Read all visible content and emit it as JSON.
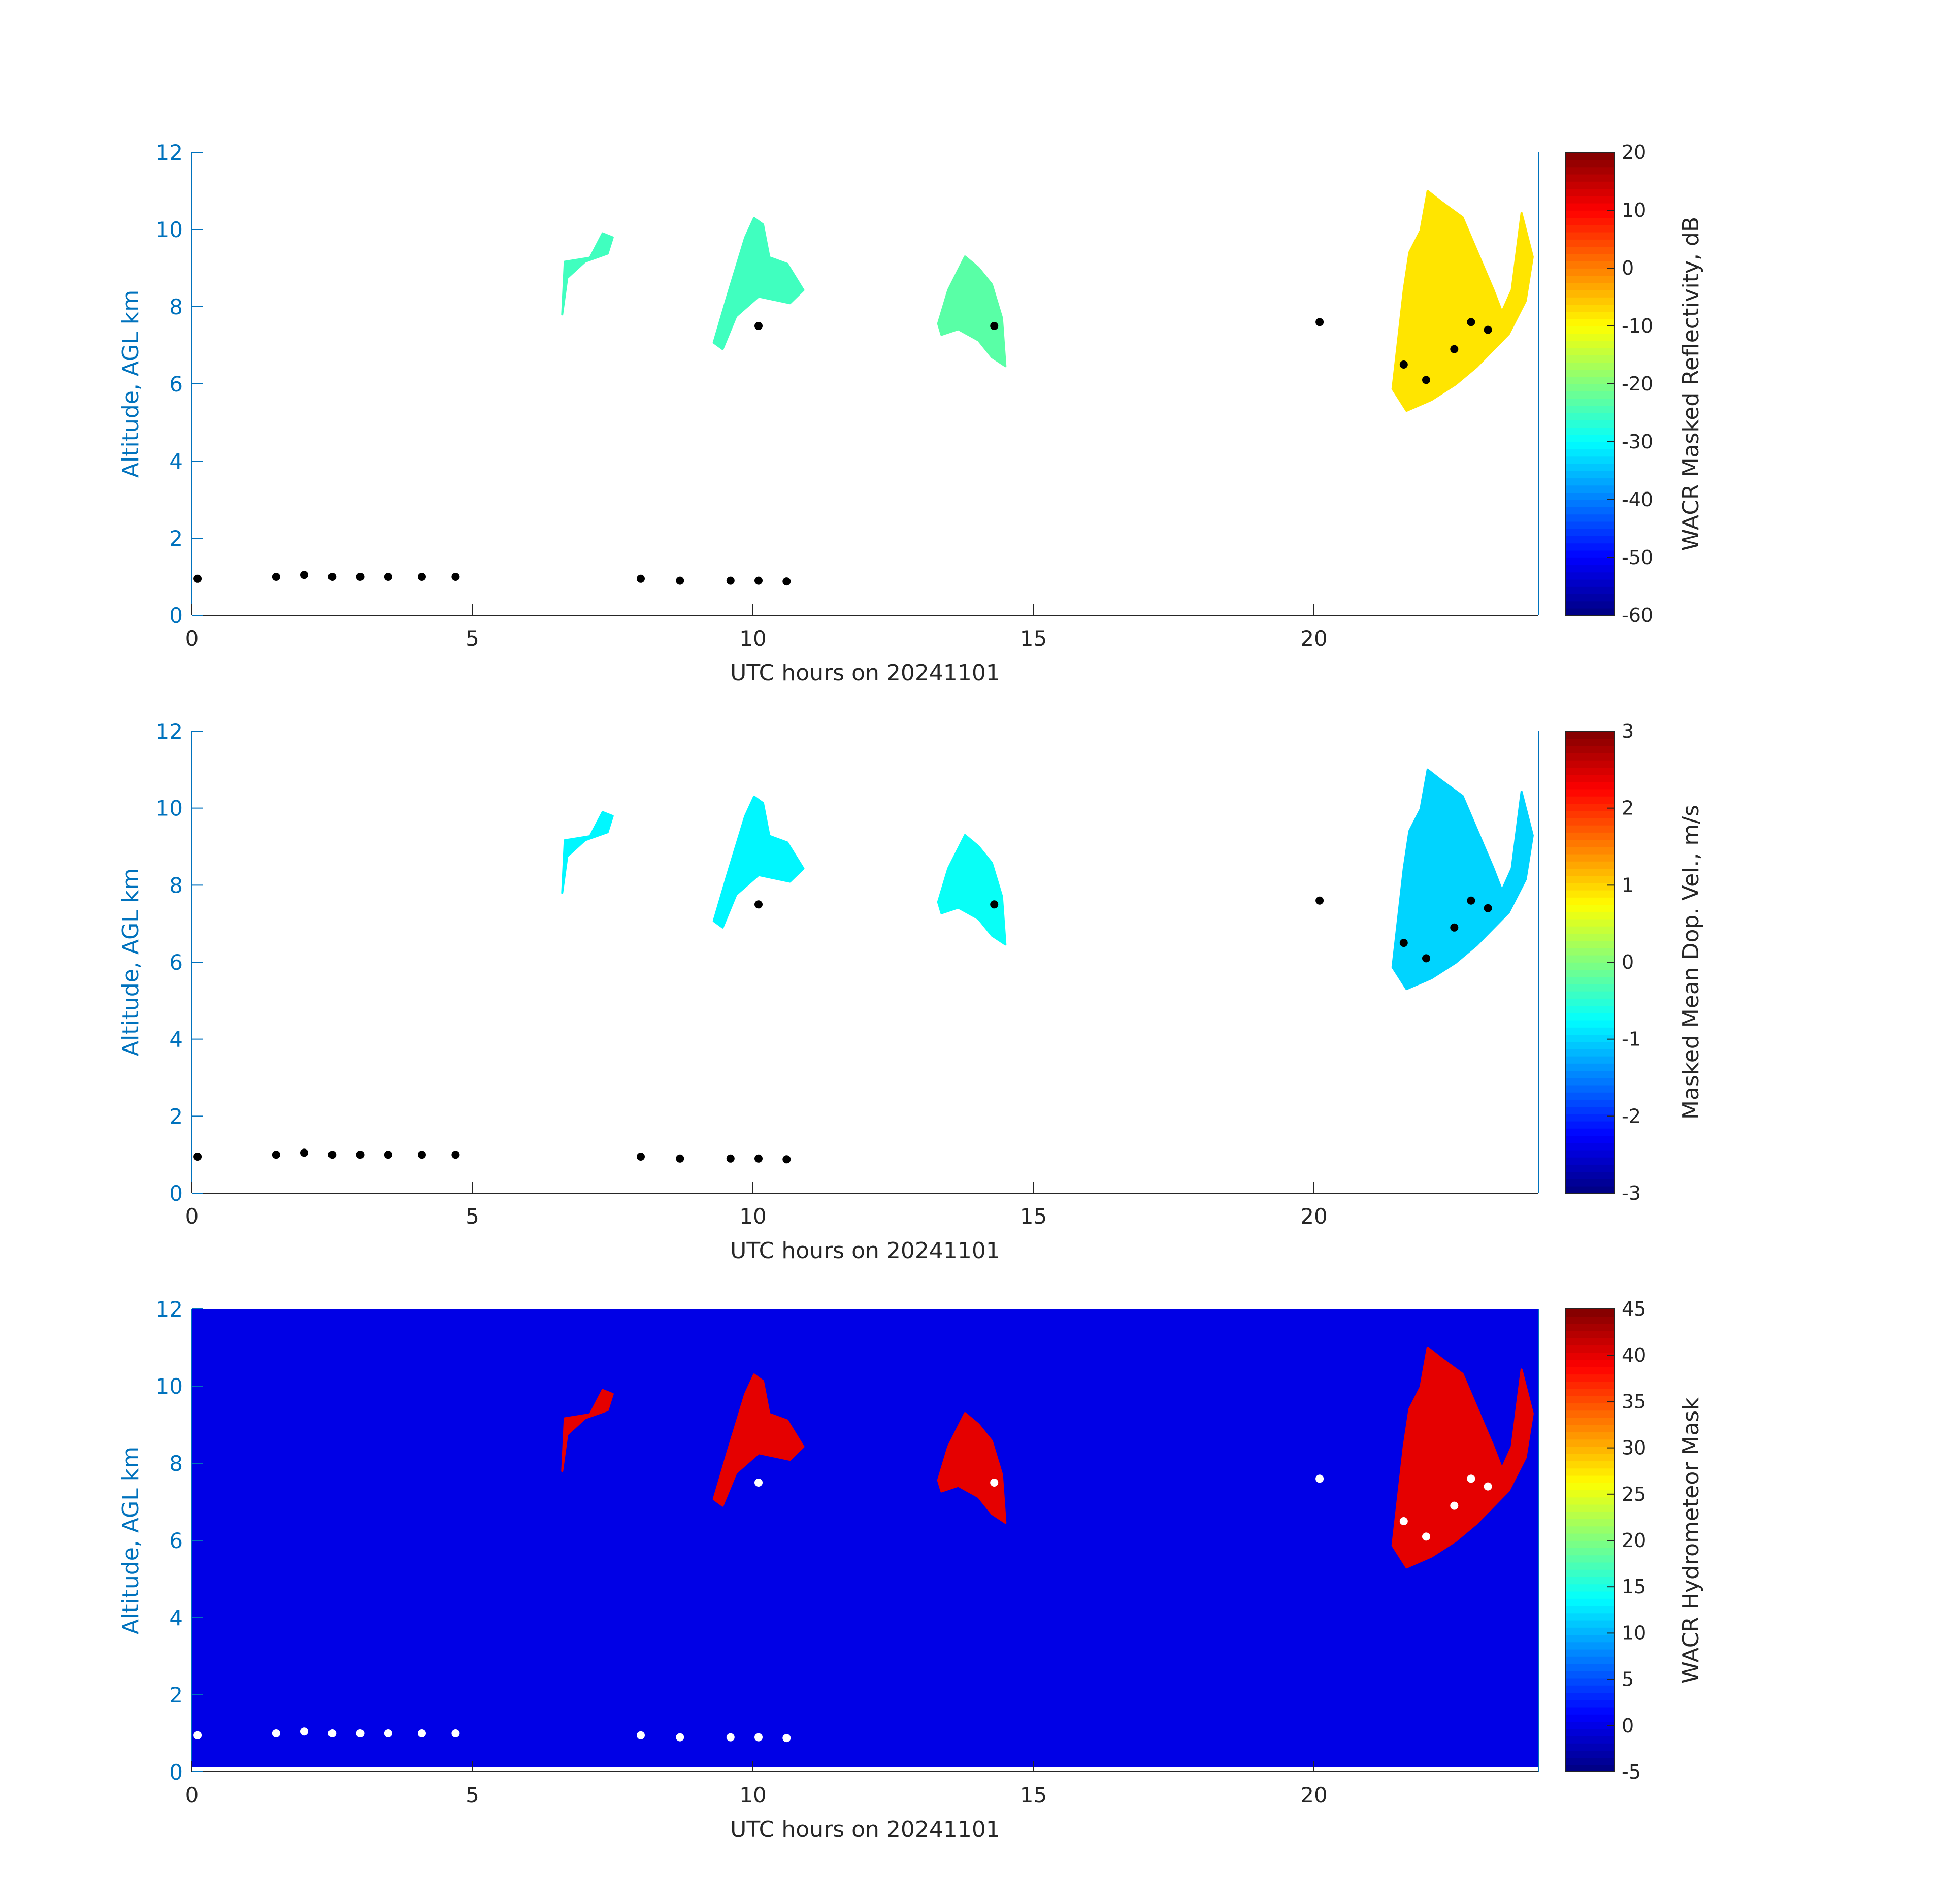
{
  "chart_data": [
    {
      "type": "heatmap",
      "xlabel": "UTC hours on 20241101",
      "ylabel": "Altitude, AGL km",
      "xlim": [
        0,
        24
      ],
      "ylim": [
        0,
        12
      ],
      "xticks": [
        0,
        5,
        10,
        15,
        20
      ],
      "yticks": [
        0,
        2,
        4,
        6,
        8,
        10,
        12
      ],
      "background": "none",
      "colorbar": {
        "label": "WACR Masked Reflectivity, dB",
        "range": [
          -60,
          20
        ],
        "ticks": [
          -60,
          -50,
          -40,
          -30,
          -20,
          -10,
          0,
          10,
          20
        ],
        "colormap": "jet"
      },
      "cloud_regions": [
        {
          "hours": [
            6.6,
            7.5
          ],
          "altitude_km": [
            7.8,
            9.9
          ],
          "value": -25
        },
        {
          "hours": [
            9.3,
            10.9
          ],
          "altitude_km": [
            6.9,
            10.3
          ],
          "value": -25
        },
        {
          "hours": [
            13.3,
            14.5
          ],
          "altitude_km": [
            6.4,
            9.3
          ],
          "value": -23
        },
        {
          "hours": [
            21.4,
            23.9
          ],
          "altitude_km": [
            5.3,
            11.0
          ],
          "value": -8
        }
      ],
      "markers": {
        "color": "#000000",
        "points": [
          [
            0.1,
            0.95
          ],
          [
            1.5,
            1.0
          ],
          [
            2.0,
            1.05
          ],
          [
            2.5,
            1.0
          ],
          [
            3.0,
            1.0
          ],
          [
            3.5,
            1.0
          ],
          [
            4.1,
            1.0
          ],
          [
            4.7,
            1.0
          ],
          [
            8.0,
            0.95
          ],
          [
            8.7,
            0.9
          ],
          [
            9.6,
            0.9
          ],
          [
            10.1,
            0.9
          ],
          [
            10.6,
            0.88
          ],
          [
            10.1,
            7.5
          ],
          [
            14.3,
            7.5
          ],
          [
            20.1,
            7.6
          ],
          [
            21.6,
            6.5
          ],
          [
            22.0,
            6.1
          ],
          [
            22.5,
            6.9
          ],
          [
            22.8,
            7.6
          ],
          [
            23.1,
            7.4
          ]
        ]
      }
    },
    {
      "type": "heatmap",
      "xlabel": "UTC hours on 20241101",
      "ylabel": "Altitude, AGL km",
      "xlim": [
        0,
        24
      ],
      "ylim": [
        0,
        12
      ],
      "xticks": [
        0,
        5,
        10,
        15,
        20
      ],
      "yticks": [
        0,
        2,
        4,
        6,
        8,
        10,
        12
      ],
      "background": "none",
      "colorbar": {
        "label": "Masked Mean Dop. Vel., m/s",
        "range": [
          -3,
          3
        ],
        "ticks": [
          -3,
          -2,
          -1,
          0,
          1,
          2,
          3
        ],
        "colormap": "jet"
      },
      "cloud_regions": [
        {
          "hours": [
            6.6,
            7.5
          ],
          "altitude_km": [
            7.8,
            9.9
          ],
          "value": -0.8
        },
        {
          "hours": [
            9.3,
            10.9
          ],
          "altitude_km": [
            6.9,
            10.3
          ],
          "value": -0.8
        },
        {
          "hours": [
            13.3,
            14.5
          ],
          "altitude_km": [
            6.4,
            9.3
          ],
          "value": -0.7
        },
        {
          "hours": [
            21.4,
            23.9
          ],
          "altitude_km": [
            5.3,
            11.0
          ],
          "value": -1.0
        }
      ],
      "markers": {
        "color": "#000000",
        "points": [
          [
            0.1,
            0.95
          ],
          [
            1.5,
            1.0
          ],
          [
            2.0,
            1.05
          ],
          [
            2.5,
            1.0
          ],
          [
            3.0,
            1.0
          ],
          [
            3.5,
            1.0
          ],
          [
            4.1,
            1.0
          ],
          [
            4.7,
            1.0
          ],
          [
            8.0,
            0.95
          ],
          [
            8.7,
            0.9
          ],
          [
            9.6,
            0.9
          ],
          [
            10.1,
            0.9
          ],
          [
            10.6,
            0.88
          ],
          [
            10.1,
            7.5
          ],
          [
            14.3,
            7.5
          ],
          [
            20.1,
            7.6
          ],
          [
            21.6,
            6.5
          ],
          [
            22.0,
            6.1
          ],
          [
            22.5,
            6.9
          ],
          [
            22.8,
            7.6
          ],
          [
            23.1,
            7.4
          ]
        ]
      }
    },
    {
      "type": "heatmap",
      "xlabel": "UTC hours on 20241101",
      "ylabel": "Altitude, AGL km",
      "xlim": [
        0,
        24
      ],
      "ylim": [
        0,
        12
      ],
      "xticks": [
        0,
        5,
        10,
        15,
        20
      ],
      "yticks": [
        0,
        2,
        4,
        6,
        8,
        10,
        12
      ],
      "background": "mask_value",
      "background_value": 0,
      "colorbar": {
        "label": "WACR Hydrometeor Mask",
        "range": [
          -5,
          45
        ],
        "ticks": [
          -5,
          0,
          5,
          10,
          15,
          20,
          25,
          30,
          35,
          40,
          45
        ],
        "colormap": "jet"
      },
      "cloud_regions": [
        {
          "hours": [
            6.6,
            7.5
          ],
          "altitude_km": [
            7.8,
            9.9
          ],
          "value": 40
        },
        {
          "hours": [
            9.3,
            10.9
          ],
          "altitude_km": [
            6.9,
            10.3
          ],
          "value": 40
        },
        {
          "hours": [
            13.3,
            14.5
          ],
          "altitude_km": [
            6.4,
            9.3
          ],
          "value": 40
        },
        {
          "hours": [
            21.4,
            23.9
          ],
          "altitude_km": [
            5.3,
            11.0
          ],
          "value": 40
        }
      ],
      "markers": {
        "color": "#ffffff",
        "points": [
          [
            0.1,
            0.95
          ],
          [
            1.5,
            1.0
          ],
          [
            2.0,
            1.05
          ],
          [
            2.5,
            1.0
          ],
          [
            3.0,
            1.0
          ],
          [
            3.5,
            1.0
          ],
          [
            4.1,
            1.0
          ],
          [
            4.7,
            1.0
          ],
          [
            8.0,
            0.95
          ],
          [
            8.7,
            0.9
          ],
          [
            9.6,
            0.9
          ],
          [
            10.1,
            0.9
          ],
          [
            10.6,
            0.88
          ],
          [
            10.1,
            7.5
          ],
          [
            14.3,
            7.5
          ],
          [
            20.1,
            7.6
          ],
          [
            21.6,
            6.5
          ],
          [
            22.0,
            6.1
          ],
          [
            22.5,
            6.9
          ],
          [
            22.8,
            7.6
          ],
          [
            23.1,
            7.4
          ]
        ]
      }
    }
  ]
}
